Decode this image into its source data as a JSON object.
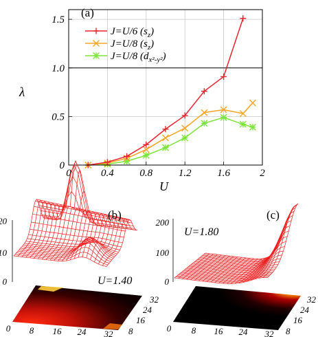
{
  "chart_data": [
    {
      "type": "line",
      "panel_label": "(a)",
      "xlabel": "U",
      "ylabel": "λ",
      "xlim": [
        0,
        2
      ],
      "ylim": [
        0,
        1.6
      ],
      "xticks": [
        "0",
        "0.4",
        "0.8",
        "1.2",
        "1.6",
        "2"
      ],
      "yticks": [
        "0",
        "0.5",
        "1.0",
        "1.5"
      ],
      "grid": true,
      "reference_line": 1.0,
      "legend_position": "top-left",
      "series": [
        {
          "name": "J=U/6 (sz)",
          "legend_main": "J=U/6 (s",
          "legend_sub": "z",
          "legend_end": ")",
          "color": "#e8242e",
          "marker": "plus",
          "x": [
            0.2,
            0.4,
            0.6,
            0.8,
            1.0,
            1.2,
            1.4,
            1.6,
            1.8
          ],
          "y": [
            0.0,
            0.03,
            0.09,
            0.21,
            0.37,
            0.51,
            0.76,
            0.91,
            1.51
          ]
        },
        {
          "name": "J=U/8 (sz)",
          "legend_main": "J=U/8 (s",
          "legend_sub": "z",
          "legend_end": ")",
          "color": "#f5a623",
          "marker": "cross",
          "x": [
            0.2,
            0.4,
            0.6,
            0.8,
            1.0,
            1.2,
            1.4,
            1.6,
            1.8,
            1.9
          ],
          "y": [
            0.0,
            0.02,
            0.07,
            0.16,
            0.28,
            0.38,
            0.54,
            0.57,
            0.53,
            0.64
          ]
        },
        {
          "name": "J=U/8 (dx2-y2)",
          "legend_main": "J=U/8 (d",
          "legend_sub": "x²-y²",
          "legend_end": ")",
          "color": "#7de53a",
          "marker": "star",
          "x": [
            0.2,
            0.4,
            0.6,
            0.8,
            1.0,
            1.2,
            1.4,
            1.6,
            1.8,
            1.9
          ],
          "y": [
            0.0,
            0.01,
            0.04,
            0.1,
            0.18,
            0.28,
            0.43,
            0.49,
            0.42,
            0.39
          ]
        }
      ]
    },
    {
      "type": "surface",
      "panel_label": "(b)",
      "annotation": "U=1.40",
      "zticks": [
        "0",
        "10",
        "20"
      ],
      "axis_ticks_front": [
        "0",
        "8",
        "16",
        "24",
        "32"
      ],
      "axis_ticks_side": [
        "8",
        "16",
        "24",
        "32"
      ],
      "grid_points": 32
    },
    {
      "type": "surface",
      "panel_label": "(c)",
      "annotation": "U=1.80",
      "zticks": [
        "0",
        "100",
        "200"
      ],
      "axis_ticks_front": [
        "0",
        "8",
        "16",
        "24",
        "32"
      ],
      "axis_ticks_side": [
        "8",
        "16",
        "24",
        "32"
      ],
      "grid_points": 32
    }
  ]
}
